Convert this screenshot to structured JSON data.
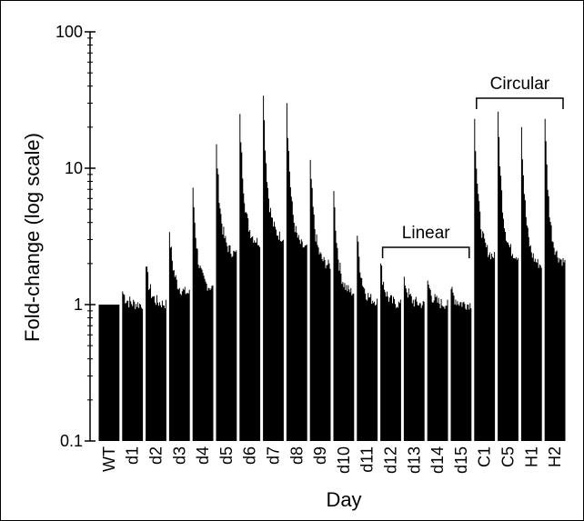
{
  "chart_data": {
    "type": "bar",
    "ylabel": "Fold-change (log scale)",
    "xlabel": "Day",
    "yscale": "log",
    "ylim": [
      0.1,
      100
    ],
    "yticks": [
      "0.1",
      "1",
      "10",
      "100"
    ],
    "categories": [
      "WT",
      "d1",
      "d2",
      "d3",
      "d4",
      "d5",
      "d6",
      "d7",
      "d8",
      "d9",
      "d10",
      "d11",
      "d12",
      "d13",
      "d14",
      "d15",
      "C1",
      "C5",
      "H1",
      "H2"
    ],
    "groups": [
      {
        "category": "WT",
        "peak": 1.0,
        "tail": 1.0
      },
      {
        "category": "d1",
        "peak": 1.25,
        "tail": 1.0
      },
      {
        "category": "d2",
        "peak": 1.9,
        "tail": 1.0
      },
      {
        "category": "d3",
        "peak": 3.4,
        "tail": 1.2
      },
      {
        "category": "d4",
        "peak": 7.2,
        "tail": 1.3
      },
      {
        "category": "d5",
        "peak": 15.0,
        "tail": 2.3
      },
      {
        "category": "d6",
        "peak": 25.0,
        "tail": 2.8
      },
      {
        "category": "d7",
        "peak": 34.0,
        "tail": 3.0
      },
      {
        "category": "d8",
        "peak": 30.0,
        "tail": 2.5
      },
      {
        "category": "d9",
        "peak": 11.5,
        "tail": 1.9
      },
      {
        "category": "d10",
        "peak": 6.8,
        "tail": 1.2
      },
      {
        "category": "d11",
        "peak": 3.2,
        "tail": 1.05
      },
      {
        "category": "d12",
        "peak": 2.0,
        "tail": 1.0
      },
      {
        "category": "d13",
        "peak": 1.6,
        "tail": 1.0
      },
      {
        "category": "d14",
        "peak": 1.5,
        "tail": 1.0
      },
      {
        "category": "d15",
        "peak": 1.3,
        "tail": 1.0
      },
      {
        "category": "C1",
        "peak": 23.0,
        "tail": 2.2
      },
      {
        "category": "C5",
        "peak": 26.0,
        "tail": 2.2
      },
      {
        "category": "H1",
        "peak": 20.0,
        "tail": 1.9
      },
      {
        "category": "H2",
        "peak": 23.0,
        "tail": 2.0
      }
    ],
    "annotations": [
      {
        "label": "Linear",
        "from": "d12",
        "to": "d15"
      },
      {
        "label": "Circular",
        "from": "C1",
        "to": "H2"
      }
    ]
  }
}
